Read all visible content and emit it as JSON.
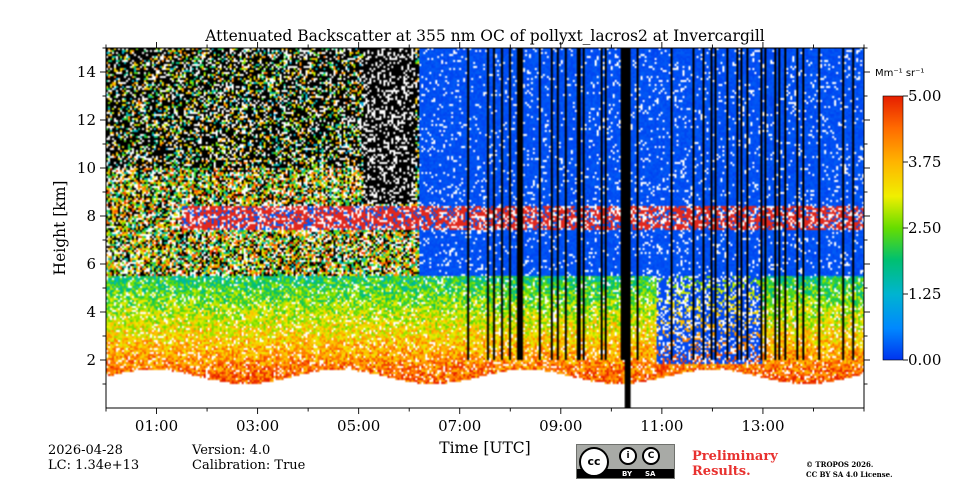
{
  "chart_data": {
    "type": "heatmap",
    "title": "Attenuated Backscatter at 355 nm OC of pollyxt_lacros2 at Invercargill",
    "xlabel": "Time [UTC]",
    "ylabel": "Height [km]",
    "xlim": [
      0,
      15
    ],
    "ylim": [
      0,
      15
    ],
    "xticks": [
      "01:00",
      "03:00",
      "05:00",
      "07:00",
      "09:00",
      "11:00",
      "13:00"
    ],
    "xtick_values": [
      1,
      3,
      5,
      7,
      9,
      11,
      13
    ],
    "yticks": [
      "2",
      "4",
      "6",
      "8",
      "10",
      "12",
      "14"
    ],
    "ytick_values": [
      2,
      4,
      6,
      8,
      10,
      12,
      14
    ],
    "colorbar": {
      "unit": "Mm⁻¹ sr⁻¹",
      "ticks": [
        "0.00",
        "1.25",
        "2.50",
        "3.75",
        "5.00"
      ],
      "tick_values": [
        0,
        1.25,
        2.5,
        3.75,
        5.0
      ],
      "range": [
        0,
        5
      ]
    },
    "features": {
      "boundary_layer_top_km": 1.5,
      "cloud_layer_km": [
        7.4,
        8.4
      ],
      "no_data_gap_utc": [
        10.25,
        10.4
      ],
      "low_cloud_period_utc": [
        10.9,
        13.0
      ]
    }
  },
  "meta": {
    "date": "2026-04-28",
    "lc": "LC: 1.34e+13",
    "version": "Version: 4.0",
    "calibration": "Calibration: True"
  },
  "badge": {
    "by": "BY",
    "sa": "SA"
  },
  "preliminary": {
    "line1": "Preliminary",
    "line2": "Results."
  },
  "copyright": {
    "line1": "© TROPOS 2026.",
    "line2": "CC BY SA 4.0 License."
  }
}
